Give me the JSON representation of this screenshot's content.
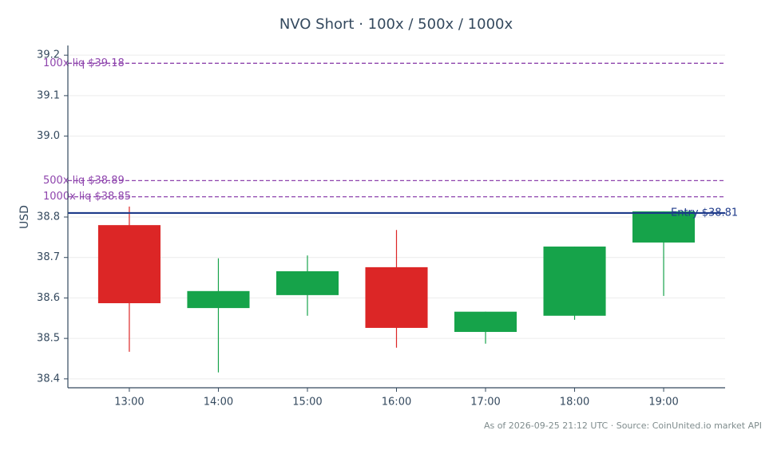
{
  "chart_data": {
    "type": "candlestick",
    "title": "NVO Short · 100x / 500x / 1000x",
    "y_label": "USD",
    "footer": "As of 2026-09-25 21:12 UTC · Source: CoinUnited.io market API",
    "categories": [
      "13:00",
      "14:00",
      "15:00",
      "16:00",
      "17:00",
      "18:00",
      "19:00"
    ],
    "open": [
      38.78,
      38.575,
      38.607,
      38.676,
      38.516,
      38.556,
      38.737
    ],
    "high": [
      38.826,
      38.698,
      38.705,
      38.768,
      38.566,
      38.727,
      38.814
    ],
    "low": [
      38.467,
      38.416,
      38.556,
      38.477,
      38.487,
      38.546,
      38.605
    ],
    "close": [
      38.587,
      38.617,
      38.666,
      38.526,
      38.566,
      38.727,
      38.814
    ],
    "up_color": "#16a34a",
    "down_color": "#dc2626",
    "ylim": [
      38.378,
      39.224
    ],
    "yticks": [
      38.4,
      38.5,
      38.6,
      38.7,
      38.8,
      {
        "value": 39,
        "label": "39.0"
      },
      39.1,
      39.2
    ],
    "grid": true,
    "reference_lines": [
      {
        "value": 39.18,
        "label": "100x liq $39.18",
        "color": "#8e44ad",
        "style": "dashed"
      },
      {
        "value": 38.89,
        "label": "500x liq $38.89",
        "color": "#8e44ad",
        "style": "dashed"
      },
      {
        "value": 38.85,
        "label": "1000x liq $38.85",
        "color": "#8e44ad",
        "style": "dashed"
      },
      {
        "value": 38.81,
        "label": "Entry $38.81",
        "color": "#1e3a8a",
        "style": "solid"
      }
    ]
  }
}
